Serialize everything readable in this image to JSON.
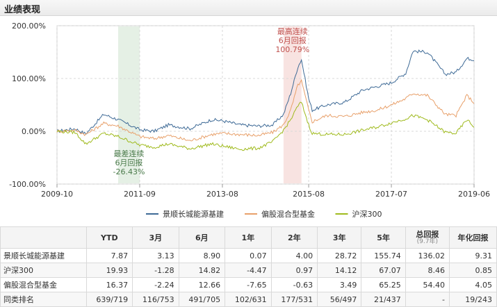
{
  "section_title": "业绩表现",
  "chart_data": {
    "type": "line",
    "x_ticks": [
      "2009-10",
      "2011-09",
      "2013-08",
      "2015-08",
      "2017-07",
      "2019-06"
    ],
    "y_ticks": [
      "200.00%",
      "100.00%",
      "0.00%",
      "-100.00%"
    ],
    "ylim": [
      -100,
      200
    ],
    "xlim": [
      "2009-10",
      "2019-06"
    ],
    "grid": true,
    "legend_position": "bottom",
    "series": [
      {
        "name": "景顺长城能源基建",
        "color": "#3e6a96",
        "x": [
          "2009-10",
          "2010-03",
          "2010-06",
          "2010-11",
          "2011-03",
          "2011-09",
          "2012-01",
          "2012-05",
          "2012-11",
          "2013-05",
          "2013-08",
          "2014-01",
          "2014-06",
          "2014-10",
          "2015-01",
          "2015-03",
          "2015-05",
          "2015-06",
          "2015-08",
          "2015-09",
          "2016-01",
          "2016-06",
          "2016-11",
          "2017-03",
          "2017-07",
          "2017-11",
          "2018-01",
          "2018-05",
          "2018-10",
          "2019-01",
          "2019-04",
          "2019-06"
        ],
        "y": [
          0,
          5,
          -5,
          32,
          22,
          3,
          0,
          12,
          5,
          22,
          20,
          12,
          10,
          12,
          32,
          72,
          122,
          136,
          62,
          40,
          50,
          55,
          78,
          85,
          92,
          110,
          152,
          150,
          108,
          112,
          138,
          136
        ]
      },
      {
        "name": "偏股混合型基金",
        "color": "#e8a06a",
        "x": [
          "2009-10",
          "2010-03",
          "2010-06",
          "2010-11",
          "2011-03",
          "2011-09",
          "2012-01",
          "2012-05",
          "2012-11",
          "2013-05",
          "2013-08",
          "2014-01",
          "2014-06",
          "2014-10",
          "2015-01",
          "2015-03",
          "2015-05",
          "2015-06",
          "2015-08",
          "2015-09",
          "2016-01",
          "2016-06",
          "2016-11",
          "2017-03",
          "2017-07",
          "2017-11",
          "2018-01",
          "2018-05",
          "2018-10",
          "2019-01",
          "2019-04",
          "2019-06"
        ],
        "y": [
          0,
          2,
          -6,
          15,
          10,
          -10,
          -14,
          -8,
          -18,
          -6,
          -4,
          -6,
          -8,
          -2,
          12,
          40,
          88,
          95,
          40,
          18,
          30,
          28,
          36,
          40,
          50,
          62,
          72,
          68,
          32,
          30,
          68,
          54
        ]
      },
      {
        "name": "沪深300",
        "color": "#9fba1c",
        "x": [
          "2009-10",
          "2010-03",
          "2010-06",
          "2010-11",
          "2011-03",
          "2011-09",
          "2012-01",
          "2012-05",
          "2012-11",
          "2013-05",
          "2013-08",
          "2014-01",
          "2014-06",
          "2014-10",
          "2015-01",
          "2015-03",
          "2015-05",
          "2015-06",
          "2015-08",
          "2015-09",
          "2016-01",
          "2016-06",
          "2016-11",
          "2017-03",
          "2017-07",
          "2017-11",
          "2018-01",
          "2018-05",
          "2018-10",
          "2019-01",
          "2019-04",
          "2019-06"
        ],
        "y": [
          0,
          -2,
          -24,
          -4,
          -10,
          -26,
          -30,
          -24,
          -33,
          -24,
          -28,
          -34,
          -32,
          -20,
          2,
          22,
          48,
          55,
          12,
          -4,
          -6,
          -6,
          2,
          8,
          16,
          24,
          30,
          22,
          -2,
          -4,
          22,
          8
        ]
      }
    ],
    "annotations": [
      {
        "label_lines": [
          "最高连续",
          "6月回报",
          "100.79%"
        ],
        "color": "#c0504d",
        "band": [
          "2015-01",
          "2015-06"
        ]
      },
      {
        "label_lines": [
          "最差连续",
          "6月回报",
          "-26.43%"
        ],
        "color": "#4a7a4a",
        "band": [
          "2011-03",
          "2011-09"
        ]
      }
    ]
  },
  "table": {
    "headers": [
      {
        "label": "",
        "sub": ""
      },
      {
        "label": "YTD",
        "sub": ""
      },
      {
        "label": "3月",
        "sub": ""
      },
      {
        "label": "6月",
        "sub": ""
      },
      {
        "label": "1年",
        "sub": ""
      },
      {
        "label": "2年",
        "sub": ""
      },
      {
        "label": "3年",
        "sub": ""
      },
      {
        "label": "5年",
        "sub": ""
      },
      {
        "label": "总回报",
        "sub": "(9.7年)"
      },
      {
        "label": "年化回报",
        "sub": ""
      }
    ],
    "rows": [
      {
        "name": "景顺长城能源基建",
        "values": [
          "7.87",
          "3.13",
          "8.90",
          "0.07",
          "4.00",
          "28.72",
          "155.74",
          "136.02",
          "9.31"
        ]
      },
      {
        "name": "沪深300",
        "values": [
          "19.93",
          "-1.28",
          "14.82",
          "-4.47",
          "0.97",
          "14.12",
          "67.07",
          "8.46",
          "0.85"
        ]
      },
      {
        "name": "偏股混合型基金",
        "values": [
          "16.37",
          "-2.24",
          "12.66",
          "-7.65",
          "-0.63",
          "3.49",
          "65.25",
          "54.40",
          "4.05"
        ]
      },
      {
        "name": "同类排名",
        "values": [
          "639/719",
          "116/753",
          "491/705",
          "102/631",
          "177/531",
          "56/497",
          "21/437",
          "-",
          "19/243"
        ]
      }
    ]
  }
}
